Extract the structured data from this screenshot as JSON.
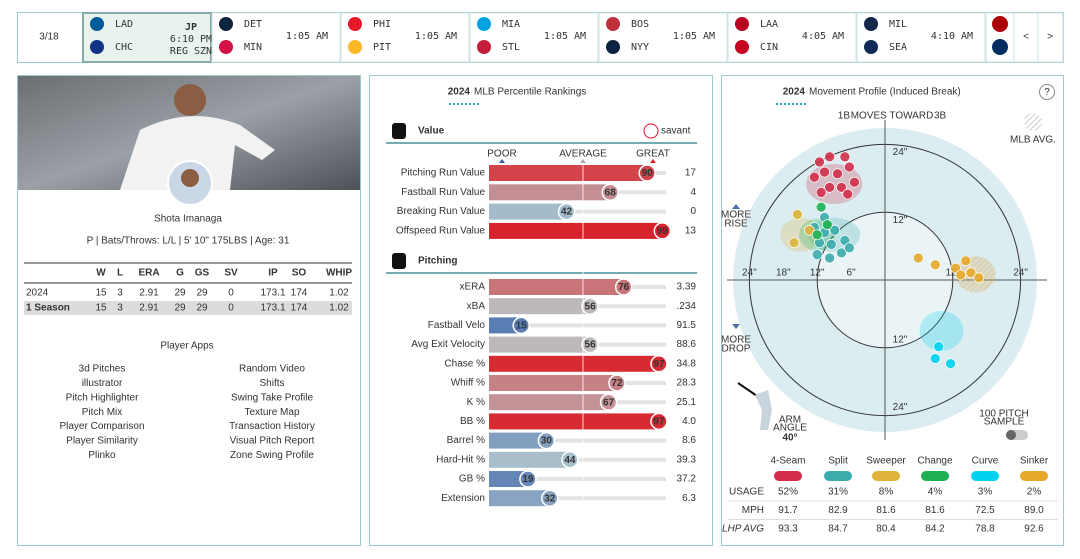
{
  "scoreboard": {
    "date": "3/18",
    "games": [
      {
        "away": "LAD",
        "home": "CHC",
        "status": [
          "JP",
          "6:10 PM",
          "REG SZN"
        ]
      },
      {
        "away": "DET",
        "home": "MIN",
        "status": [
          "1:05 AM"
        ]
      },
      {
        "away": "PHI",
        "home": "PIT",
        "status": [
          "1:05 AM"
        ]
      },
      {
        "away": "MIA",
        "home": "STL",
        "status": [
          "1:05 AM"
        ]
      },
      {
        "away": "BOS",
        "home": "NYY",
        "status": [
          "1:05 AM"
        ]
      },
      {
        "away": "LAA",
        "home": "CIN",
        "status": [
          "4:05 AM"
        ]
      },
      {
        "away": "MIL",
        "home": "SEA",
        "status": [
          "4:10 AM"
        ]
      }
    ],
    "prev": "<",
    "next": ">"
  },
  "player": {
    "name": "Shota Imanaga",
    "bio": "P | Bats/Throws: L/L | 5' 10\" 175LBS | Age: 31",
    "stats": {
      "headers": [
        "W",
        "L",
        "ERA",
        "G",
        "GS",
        "SV",
        "IP",
        "SO",
        "WHIP"
      ],
      "rows": [
        [
          "2024",
          "15",
          "3",
          "2.91",
          "29",
          "29",
          "0",
          "173.1",
          "174",
          "1.02"
        ],
        [
          "1 Season",
          "15",
          "3",
          "2.91",
          "29",
          "29",
          "0",
          "173.1",
          "174",
          "1.02"
        ]
      ]
    }
  },
  "apps": {
    "title": "Player Apps",
    "columns": [
      [
        "3d Pitches",
        "illustrator",
        "Pitch Highlighter",
        "Pitch Mix",
        "Player Comparison",
        "Player Similarity",
        "Plinko"
      ],
      [
        "Random Video",
        "Shifts",
        "Swing Take Profile",
        "Texture Map",
        "Transaction History",
        "Visual Pitch Report",
        "Zone Swing Profile"
      ]
    ]
  },
  "percentiles": {
    "year": "2024",
    "title": "MLB Percentile Rankings",
    "brand": "savant",
    "scale": [
      "POOR",
      "AVERAGE",
      "GREAT"
    ],
    "sections": [
      {
        "name": "Value",
        "rows": [
          {
            "label": "Pitching Run Value",
            "percentile": 90,
            "value": "17"
          },
          {
            "label": "Fastball Run Value",
            "percentile": 68,
            "value": "4"
          },
          {
            "label": "Breaking Run Value",
            "percentile": 42,
            "value": "0"
          },
          {
            "label": "Offspeed Run Value",
            "percentile": 99,
            "value": "13"
          }
        ]
      },
      {
        "name": "Pitching",
        "rows": [
          {
            "label": "xERA",
            "percentile": 76,
            "value": "3.39"
          },
          {
            "label": "xBA",
            "percentile": 56,
            "value": ".234"
          },
          {
            "label": "Fastball Velo",
            "percentile": 15,
            "value": "91.5"
          },
          {
            "label": "Avg Exit Velocity",
            "percentile": 56,
            "value": "88.6"
          },
          {
            "label": "Chase %",
            "percentile": 97,
            "value": "34.8"
          },
          {
            "label": "Whiff %",
            "percentile": 72,
            "value": "28.3"
          },
          {
            "label": "K %",
            "percentile": 67,
            "value": "25.1"
          },
          {
            "label": "BB %",
            "percentile": 97,
            "value": "4.0"
          },
          {
            "label": "Barrel %",
            "percentile": 30,
            "value": "8.6"
          },
          {
            "label": "Hard-Hit %",
            "percentile": 44,
            "value": "39.3"
          },
          {
            "label": "GB %",
            "percentile": 19,
            "value": "37.2"
          },
          {
            "label": "Extension",
            "percentile": 32,
            "value": "6.3"
          }
        ]
      }
    ]
  },
  "movement": {
    "year": "2024",
    "title": "Movement Profile (Induced Break)",
    "help": "?",
    "direction": [
      "1B",
      "MOVES TOWARD",
      "3B"
    ],
    "mlb_avg": "MLB AVG.",
    "rise": [
      "MORE",
      "RISE"
    ],
    "drop": [
      "MORE",
      "DROP"
    ],
    "arm_angle_label": [
      "ARM",
      "ANGLE"
    ],
    "arm_angle": "40°",
    "sample": [
      "100 PITCH",
      "SAMPLE"
    ],
    "xticks": [
      {
        "value": -24,
        "label": "24\""
      },
      {
        "value": -18,
        "label": "18\""
      },
      {
        "value": -12,
        "label": "12\""
      },
      {
        "value": -6,
        "label": "6\""
      },
      {
        "value": 12,
        "label": "12\""
      },
      {
        "value": 24,
        "label": "24\""
      }
    ],
    "yticks": [
      {
        "value": 24,
        "label": "24\""
      },
      {
        "value": 12,
        "label": "12\""
      },
      {
        "value": -12,
        "label": "12\""
      },
      {
        "value": -24,
        "label": "24\""
      }
    ],
    "row_labels": [
      "USAGE",
      "MPH",
      "LHP AVG"
    ],
    "pitches": [
      {
        "name": "4-Seam",
        "color": "#d22d49",
        "usage": "52%",
        "mph": "91.7",
        "lhp_avg": "93.3",
        "points": [
          [
            -11.6,
            20.9
          ],
          [
            -9.8,
            21.8
          ],
          [
            -7.1,
            21.8
          ],
          [
            -10.7,
            19.1
          ],
          [
            -8.4,
            18.8
          ],
          [
            -6.3,
            20.0
          ],
          [
            -12.5,
            18.2
          ],
          [
            -9.8,
            16.4
          ],
          [
            -7.7,
            16.4
          ],
          [
            -5.4,
            17.3
          ],
          [
            -11.3,
            15.5
          ],
          [
            -6.6,
            15.2
          ]
        ]
      },
      {
        "name": "Split",
        "color": "#3bacac",
        "usage": "31%",
        "mph": "82.9",
        "lhp_avg": "84.7",
        "points": [
          [
            -12.5,
            9.3
          ],
          [
            -10.7,
            8.4
          ],
          [
            -8.9,
            8.8
          ],
          [
            -11.6,
            6.6
          ],
          [
            -9.5,
            6.3
          ],
          [
            -7.1,
            7.0
          ],
          [
            -12.0,
            4.5
          ],
          [
            -9.8,
            3.9
          ],
          [
            -7.7,
            4.8
          ],
          [
            -6.3,
            5.7
          ],
          [
            -10.7,
            11.1
          ]
        ]
      },
      {
        "name": "Sweeper",
        "color": "#ddb33a",
        "usage": "8%",
        "mph": "81.6",
        "lhp_avg": "80.4",
        "points": [
          [
            -15.5,
            11.6
          ],
          [
            -13.4,
            8.8
          ],
          [
            -16.1,
            6.6
          ]
        ]
      },
      {
        "name": "Change",
        "color": "#1db053",
        "usage": "4%",
        "mph": "81.6",
        "lhp_avg": "84.2",
        "points": [
          [
            -11.3,
            12.9
          ],
          [
            -10.2,
            9.8
          ],
          [
            -12.0,
            8.0
          ]
        ]
      },
      {
        "name": "Curve",
        "color": "#00d1ed",
        "usage": "3%",
        "mph": "72.5",
        "lhp_avg": "78.8",
        "points": [
          [
            9.5,
            -11.8
          ],
          [
            11.6,
            -14.8
          ],
          [
            8.9,
            -13.9
          ]
        ]
      },
      {
        "name": "Sinker",
        "color": "#e5a82a",
        "usage": "2%",
        "mph": "89.0",
        "lhp_avg": "92.6",
        "points": [
          [
            5.9,
            3.9
          ],
          [
            8.9,
            2.7
          ],
          [
            12.5,
            2.1
          ],
          [
            13.4,
            0.9
          ],
          [
            15.2,
            1.3
          ],
          [
            14.3,
            3.4
          ],
          [
            16.6,
            0.4
          ]
        ]
      }
    ]
  }
}
